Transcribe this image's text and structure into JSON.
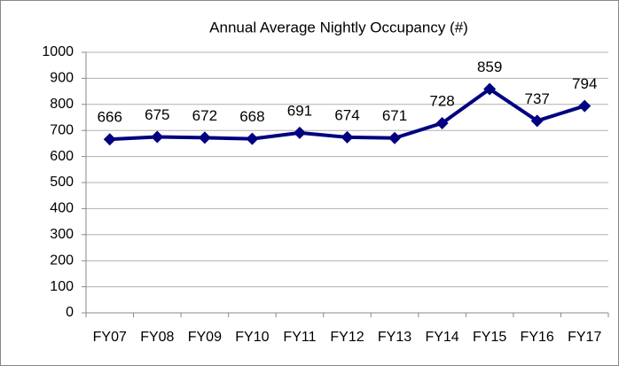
{
  "chart_data": {
    "type": "line",
    "title": "Annual Average Nightly Occupancy (#)",
    "categories": [
      "FY07",
      "FY08",
      "FY09",
      "FY10",
      "FY11",
      "FY12",
      "FY13",
      "FY14",
      "FY15",
      "FY16",
      "FY17"
    ],
    "values": [
      666,
      675,
      672,
      668,
      691,
      674,
      671,
      728,
      859,
      737,
      794
    ],
    "color": "#000080",
    "ylim": [
      0,
      1000
    ],
    "yticks": [
      0,
      100,
      200,
      300,
      400,
      500,
      600,
      700,
      800,
      900,
      1000
    ],
    "grid": true
  }
}
